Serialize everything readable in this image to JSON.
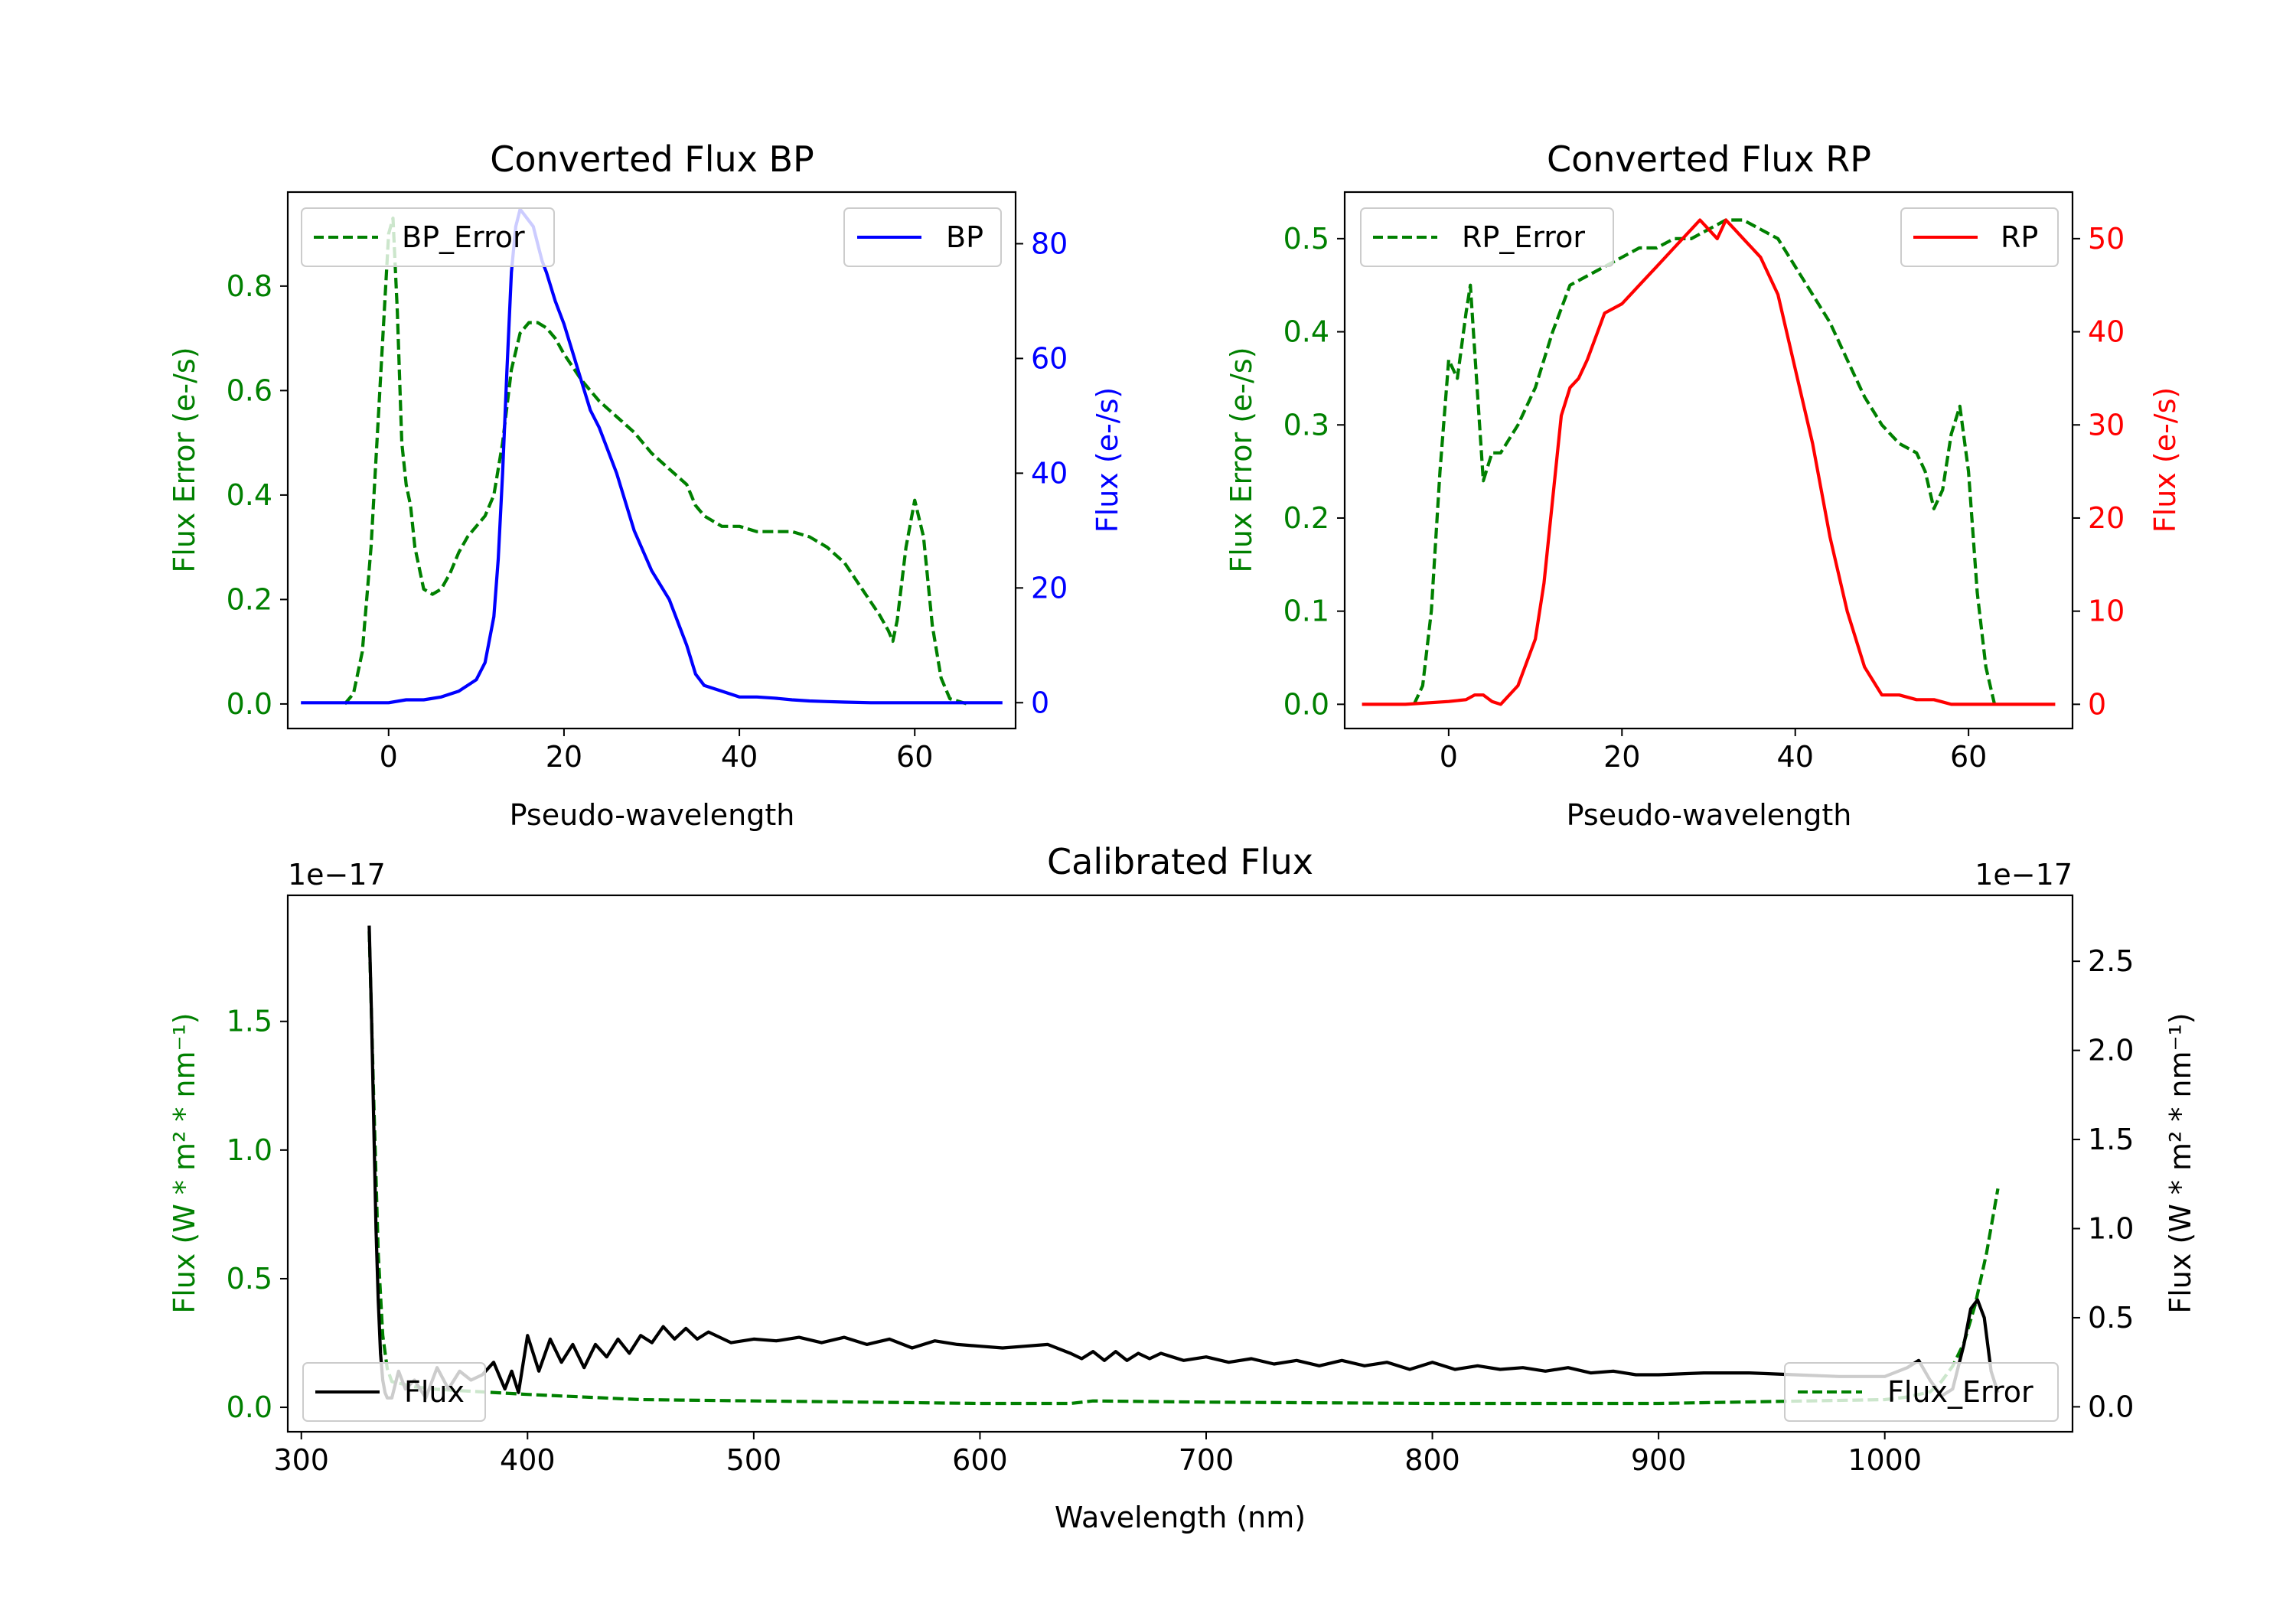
{
  "figure": {
    "background": "#ffffff"
  },
  "chart_data": [
    {
      "type": "line",
      "title": "Converted Flux BP",
      "xlabel": "Pseudo-wavelength",
      "ylabel_left": "Flux Error (e-/s)",
      "ylabel_right": "Flux (e-/s)",
      "xlim": [
        -11.5,
        71.5
      ],
      "ylim_left": [
        -0.047,
        0.98
      ],
      "ylim_right": [
        -4.5,
        89
      ],
      "xticks": [
        0,
        20,
        40,
        60
      ],
      "yticks_left": [
        0.0,
        0.2,
        0.4,
        0.6,
        0.8
      ],
      "yticks_right": [
        0,
        20,
        40,
        60,
        80
      ],
      "left_color": "#008000",
      "right_color": "#0000ff",
      "legend_left": "top-left",
      "legend_right": "top-right",
      "series": [
        {
          "name": "BP_Error",
          "axis": "left",
          "color": "#008000",
          "style": "dashed",
          "x": [
            -5,
            -4,
            -3,
            -2,
            -1,
            0,
            0.5,
            1,
            1.5,
            2,
            2.5,
            3,
            4,
            5,
            6,
            7,
            8,
            9,
            10,
            11,
            12,
            13,
            14,
            15,
            16,
            17,
            18,
            19,
            20,
            22,
            24,
            26,
            28,
            30,
            32,
            34,
            35,
            36,
            38,
            40,
            42,
            44,
            46,
            48,
            50,
            52,
            54,
            56,
            57,
            57.5,
            58,
            59,
            60,
            61,
            62,
            63,
            64,
            66
          ],
          "y": [
            0,
            0.02,
            0.1,
            0.3,
            0.6,
            0.9,
            0.93,
            0.75,
            0.5,
            0.42,
            0.38,
            0.3,
            0.22,
            0.21,
            0.22,
            0.25,
            0.29,
            0.32,
            0.34,
            0.36,
            0.4,
            0.5,
            0.64,
            0.71,
            0.73,
            0.73,
            0.72,
            0.7,
            0.67,
            0.62,
            0.58,
            0.55,
            0.52,
            0.48,
            0.45,
            0.42,
            0.38,
            0.36,
            0.34,
            0.34,
            0.33,
            0.33,
            0.33,
            0.32,
            0.3,
            0.27,
            0.22,
            0.17,
            0.14,
            0.12,
            0.16,
            0.3,
            0.39,
            0.32,
            0.15,
            0.05,
            0.01,
            0
          ]
        },
        {
          "name": "BP",
          "axis": "right",
          "color": "#0000ff",
          "style": "solid",
          "x": [
            -10,
            -6,
            -2,
            0,
            2,
            4,
            6,
            8,
            10,
            11,
            12,
            12.5,
            13,
            13.5,
            14,
            14.5,
            15,
            15.5,
            16,
            16.5,
            17,
            17.5,
            18,
            19,
            20,
            21,
            22,
            23,
            24,
            26,
            28,
            30,
            32,
            34,
            35,
            36,
            38,
            40,
            42,
            44,
            46,
            48,
            50,
            52,
            55,
            60,
            65,
            70
          ],
          "y": [
            0,
            0,
            0,
            0,
            0.5,
            0.5,
            1,
            2,
            4,
            7,
            15,
            25,
            40,
            58,
            75,
            83,
            86,
            85,
            84,
            83,
            80,
            77,
            75,
            70,
            66,
            61,
            56,
            51,
            48,
            40,
            30,
            23,
            18,
            10,
            5,
            3,
            2,
            1,
            1,
            0.8,
            0.5,
            0.3,
            0.2,
            0.1,
            0,
            0,
            0,
            0
          ]
        }
      ]
    },
    {
      "type": "line",
      "title": "Converted Flux RP",
      "xlabel": "Pseudo-wavelength",
      "ylabel_left": "Flux Error (e-/s)",
      "ylabel_right": "Flux (e-/s)",
      "xlim": [
        -12,
        72
      ],
      "ylim_left": [
        -0.026,
        0.55
      ],
      "ylim_right": [
        -2.6,
        55
      ],
      "xticks": [
        0,
        20,
        40,
        60
      ],
      "yticks_left": [
        0.0,
        0.1,
        0.2,
        0.3,
        0.4,
        0.5
      ],
      "yticks_right": [
        0,
        10,
        20,
        30,
        40,
        50
      ],
      "left_color": "#008000",
      "right_color": "#ff0000",
      "legend_left": "top-left",
      "legend_right": "top-right",
      "series": [
        {
          "name": "RP_Error",
          "axis": "left",
          "color": "#008000",
          "style": "dashed",
          "x": [
            -4,
            -3,
            -2,
            -1,
            0,
            1,
            2,
            2.5,
            3,
            4,
            5,
            6,
            8,
            10,
            12,
            14,
            16,
            18,
            20,
            22,
            24,
            26,
            28,
            30,
            32,
            34,
            36,
            38,
            40,
            42,
            44,
            46,
            48,
            50,
            52,
            54,
            55,
            56,
            57,
            58,
            59,
            60,
            61,
            62,
            63
          ],
          "y": [
            0,
            0.02,
            0.1,
            0.25,
            0.37,
            0.35,
            0.42,
            0.45,
            0.38,
            0.24,
            0.27,
            0.27,
            0.3,
            0.34,
            0.4,
            0.45,
            0.46,
            0.47,
            0.48,
            0.49,
            0.49,
            0.5,
            0.5,
            0.51,
            0.52,
            0.52,
            0.51,
            0.5,
            0.47,
            0.44,
            0.41,
            0.37,
            0.33,
            0.3,
            0.28,
            0.27,
            0.25,
            0.21,
            0.23,
            0.29,
            0.32,
            0.25,
            0.12,
            0.04,
            0
          ]
        },
        {
          "name": "RP",
          "axis": "right",
          "color": "#ff0000",
          "style": "solid",
          "x": [
            -10,
            -5,
            0,
            2,
            3,
            4,
            5,
            6,
            8,
            10,
            11,
            12,
            13,
            14,
            15,
            16,
            18,
            20,
            22,
            24,
            26,
            28,
            29,
            30,
            31,
            32,
            33,
            34,
            36,
            38,
            40,
            42,
            44,
            46,
            48,
            50,
            52,
            54,
            56,
            58,
            60,
            62,
            65,
            70
          ],
          "y": [
            0,
            0,
            0.3,
            0.5,
            1,
            1,
            0.3,
            0,
            2,
            7,
            13,
            22,
            31,
            34,
            35,
            37,
            42,
            43,
            45,
            47,
            49,
            51,
            52,
            51,
            50,
            52,
            51,
            50,
            48,
            44,
            36,
            28,
            18,
            10,
            4,
            1,
            1,
            0.5,
            0.5,
            0,
            0,
            0,
            0,
            0
          ]
        }
      ]
    },
    {
      "type": "line",
      "title": "Calibrated Flux",
      "xlabel": "Wavelength (nm)",
      "ylabel_left": "Flux (W * m² * nm⁻¹)",
      "ylabel_right": "Flux (W * m² * nm⁻¹)",
      "offset_left": "1e−17",
      "offset_right": "1e−17",
      "xlim": [
        294,
        1083
      ],
      "ylim_left": [
        -0.095,
        1.99
      ],
      "ylim_right": [
        -0.14,
        2.87
      ],
      "xticks": [
        300,
        400,
        500,
        600,
        700,
        800,
        900,
        1000
      ],
      "yticks_left": [
        0.0,
        0.5,
        1.0,
        1.5
      ],
      "yticks_right": [
        0.0,
        0.5,
        1.0,
        1.5,
        2.0,
        2.5
      ],
      "left_color": "#008000",
      "right_color": "#000000",
      "legend_left": "bottom-left",
      "legend_right": "bottom-right",
      "series": [
        {
          "name": "Flux_Error",
          "axis": "left",
          "color": "#008000",
          "style": "dashed",
          "x": [
            330,
            332,
            334,
            336,
            338,
            340,
            350,
            360,
            380,
            400,
            450,
            500,
            550,
            600,
            640,
            650,
            700,
            800,
            900,
            1000,
            1010,
            1020,
            1025,
            1030,
            1035,
            1040,
            1045,
            1050
          ],
          "y": [
            1.85,
            1.2,
            0.6,
            0.28,
            0.15,
            0.1,
            0.08,
            0.07,
            0.06,
            0.05,
            0.03,
            0.025,
            0.02,
            0.015,
            0.015,
            0.025,
            0.02,
            0.015,
            0.015,
            0.03,
            0.04,
            0.06,
            0.1,
            0.16,
            0.25,
            0.4,
            0.6,
            0.85
          ]
        },
        {
          "name": "Flux",
          "axis": "right",
          "color": "#000000",
          "style": "solid",
          "x": [
            330,
            331,
            332,
            333,
            334,
            335,
            336,
            337,
            338,
            340,
            343,
            346,
            350,
            355,
            360,
            365,
            370,
            375,
            380,
            385,
            390,
            393,
            396,
            400,
            405,
            410,
            415,
            420,
            425,
            430,
            435,
            440,
            445,
            450,
            455,
            460,
            465,
            470,
            475,
            480,
            490,
            500,
            510,
            520,
            530,
            540,
            550,
            560,
            570,
            580,
            590,
            600,
            610,
            620,
            630,
            640,
            645,
            650,
            655,
            660,
            665,
            670,
            675,
            680,
            690,
            700,
            710,
            720,
            730,
            740,
            750,
            760,
            770,
            780,
            790,
            800,
            810,
            820,
            830,
            840,
            850,
            860,
            870,
            880,
            890,
            900,
            920,
            940,
            960,
            980,
            1000,
            1010,
            1015,
            1020,
            1025,
            1030,
            1035,
            1038,
            1041,
            1044,
            1047,
            1050
          ],
          "y": [
            2.7,
            2.2,
            1.6,
            1.0,
            0.6,
            0.3,
            0.15,
            0.08,
            0.05,
            0.05,
            0.2,
            0.1,
            0.15,
            0.05,
            0.22,
            0.1,
            0.2,
            0.15,
            0.18,
            0.25,
            0.1,
            0.2,
            0.08,
            0.4,
            0.2,
            0.38,
            0.25,
            0.35,
            0.22,
            0.35,
            0.28,
            0.38,
            0.3,
            0.4,
            0.36,
            0.45,
            0.38,
            0.44,
            0.38,
            0.42,
            0.36,
            0.38,
            0.37,
            0.39,
            0.36,
            0.39,
            0.35,
            0.38,
            0.33,
            0.37,
            0.35,
            0.34,
            0.33,
            0.34,
            0.35,
            0.3,
            0.27,
            0.31,
            0.26,
            0.31,
            0.26,
            0.3,
            0.27,
            0.3,
            0.26,
            0.28,
            0.25,
            0.27,
            0.24,
            0.26,
            0.23,
            0.26,
            0.23,
            0.25,
            0.21,
            0.25,
            0.21,
            0.23,
            0.21,
            0.22,
            0.2,
            0.22,
            0.19,
            0.2,
            0.18,
            0.18,
            0.19,
            0.19,
            0.18,
            0.17,
            0.17,
            0.22,
            0.26,
            0.15,
            0.06,
            0.1,
            0.35,
            0.55,
            0.6,
            0.5,
            0.2,
            0.08
          ]
        }
      ]
    }
  ]
}
